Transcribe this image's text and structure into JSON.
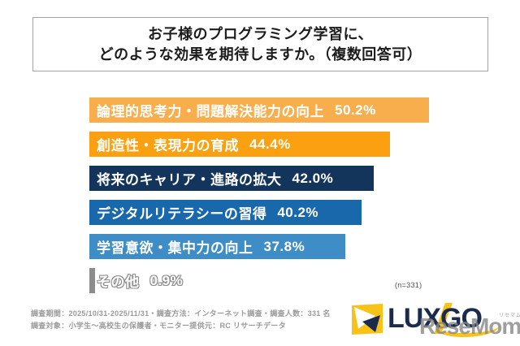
{
  "title": {
    "line1": "お子様のプログラミング学習に、",
    "line2": "どのような効果を期待しますか。（複数回答可）"
  },
  "chart_data": {
    "type": "bar",
    "orientation": "horizontal",
    "title": "お子様のプログラミング学習に、どのような効果を期待しますか。（複数回答可）",
    "categories": [
      "論理的思考力・問題解決能力の向上",
      "創造性・表現力の育成",
      "将来のキャリア・進路の拡大",
      "デジタルリテラシーの習得",
      "学習意欲・集中力の向上",
      "その他"
    ],
    "values": [
      50.2,
      44.4,
      42.0,
      40.2,
      37.8,
      0.9
    ],
    "value_labels": [
      "50.2%",
      "44.4%",
      "42.0%",
      "40.2%",
      "37.8%",
      "0.9%"
    ],
    "bar_colors": [
      "#F9AE4D",
      "#FAA011",
      "#13355C",
      "#1A68AC",
      "#3E8DC7",
      "#8C8C8C"
    ],
    "xlim": [
      0,
      60
    ],
    "grid": false,
    "legend": false,
    "sample_size_note": "(n=331)"
  },
  "footer": {
    "line1": "調査期間：2025/10/31-2025/11/31・調査方法：インターネット調査・調査人数：331 名",
    "line2": "調査対象：小学生～高校生の保護者・モニター提供元：RC リサーチデータ"
  },
  "logo": {
    "brand": "LUXGO",
    "brand_color": "#1B2B4C",
    "accent_yellow": "#F9C216",
    "watermark": "ReseMom.",
    "watermark_ruby": "リセマム"
  }
}
